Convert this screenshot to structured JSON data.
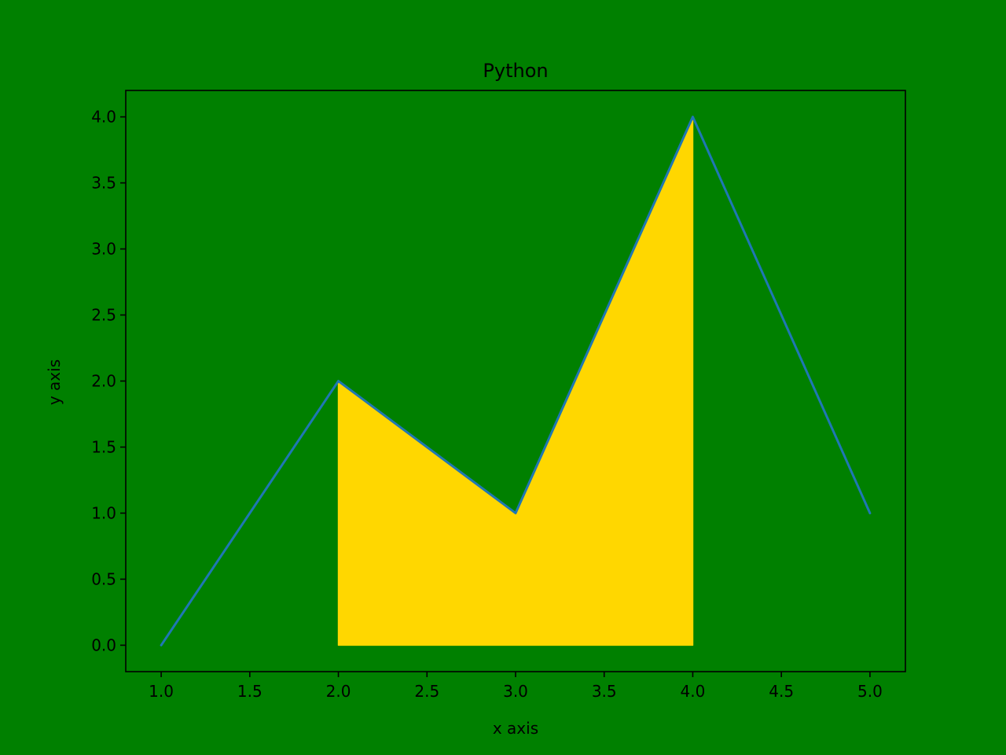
{
  "colors": {
    "background": "#008000",
    "plot_background": "#008000",
    "line": "#1f77b4",
    "fill": "#ffd700",
    "axes": "#000000",
    "text": "#000000"
  },
  "chart_data": {
    "type": "line",
    "title": "Python",
    "xlabel": "x axis",
    "ylabel": "y axis",
    "x": [
      1,
      2,
      3,
      4,
      5
    ],
    "series": [
      {
        "values": [
          0,
          2,
          1,
          4,
          1
        ]
      }
    ],
    "fill_between": {
      "x": [
        2,
        3,
        4
      ],
      "y": [
        2,
        1,
        4
      ],
      "baseline": 0,
      "color": "#ffd700"
    },
    "xlim": [
      0.8,
      5.2
    ],
    "ylim": [
      -0.2,
      4.2
    ],
    "xticks": [
      "1.0",
      "1.5",
      "2.0",
      "2.5",
      "3.0",
      "3.5",
      "4.0",
      "4.5",
      "5.0"
    ],
    "yticks": [
      "0.0",
      "0.5",
      "1.0",
      "1.5",
      "2.0",
      "2.5",
      "3.0",
      "3.5",
      "4.0"
    ],
    "grid": false,
    "legend": false
  }
}
